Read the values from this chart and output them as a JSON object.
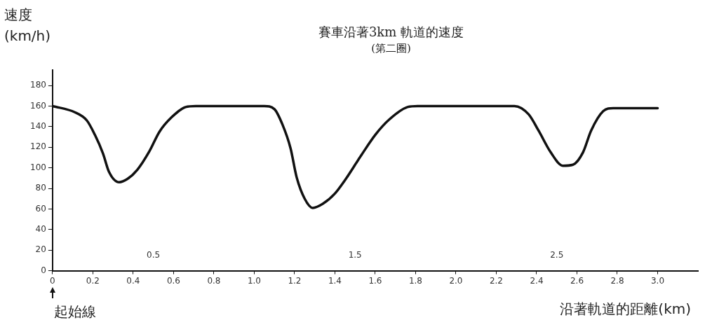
{
  "chart_data": {
    "type": "line",
    "title": "賽車沿著3km  軌道的速度",
    "subtitle": "(第二圈)",
    "xlabel": "沿著軌道的距離(km)",
    "ylabel": "速度 (km/h)",
    "series": [
      {
        "color": "#111111",
        "x": [
          0,
          0.11,
          0.17,
          0.21,
          0.25,
          0.28,
          0.33,
          0.37,
          0.42,
          0.48,
          0.53,
          0.59,
          0.66,
          0.71,
          1.05,
          1.1,
          1.14,
          1.18,
          1.21,
          1.25,
          1.29,
          1.34,
          1.4,
          1.45,
          1.53,
          1.6,
          1.67,
          1.76,
          1.81,
          2.29,
          2.36,
          2.41,
          2.47,
          2.53,
          2.58,
          2.63,
          2.67,
          2.73,
          2.78,
          3.0
        ],
        "values": [
          160,
          154,
          146,
          132,
          114,
          96,
          86,
          89,
          98,
          116,
          135,
          149,
          159,
          160,
          160,
          157,
          142,
          119,
          91,
          70,
          61,
          65,
          75,
          88,
          112,
          132,
          147,
          159,
          160,
          160,
          152,
          136,
          115,
          102,
          103,
          115,
          136,
          155,
          158,
          158
        ]
      }
    ],
    "xlim": [
      0,
      3.2
    ],
    "ylim": [
      0,
      195
    ],
    "xticks": [
      0,
      0.2,
      0.4,
      0.6,
      0.8,
      {
        "value": 1,
        "label": "1.0"
      },
      1.2,
      1.4,
      1.6,
      1.8,
      {
        "value": 2,
        "label": "2.0"
      },
      2.2,
      2.4,
      2.6,
      2.8,
      {
        "value": 3,
        "label": "3.0"
      }
    ],
    "yticks": [
      0,
      20,
      40,
      60,
      80,
      100,
      120,
      140,
      160,
      180
    ],
    "marker": "none",
    "line_style": "solid",
    "legend": false,
    "grid": false,
    "annotations": [
      "起始線",
      "0.5",
      "1.5",
      "2.5"
    ]
  }
}
